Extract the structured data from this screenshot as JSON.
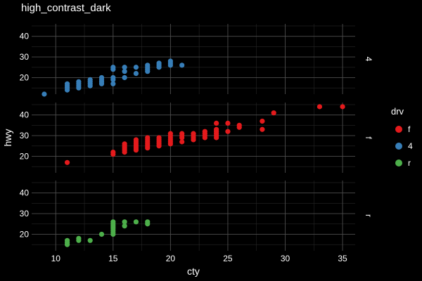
{
  "chart_data": {
    "type": "scatter",
    "title": "high_contrast_dark",
    "xlabel": "cty",
    "ylabel": "hwy",
    "facet_var": "drv",
    "facets": [
      "4",
      "f",
      "r"
    ],
    "xlim": [
      7.9,
      36.1
    ],
    "ylim": [
      12,
      46
    ],
    "x_ticks": [
      10,
      15,
      20,
      25,
      30,
      35
    ],
    "y_ticks": [
      20,
      30,
      40
    ],
    "grid": true,
    "legend": {
      "title": "drv",
      "position": "right",
      "entries": [
        {
          "label": "f",
          "color": "#e41a1c"
        },
        {
          "label": "4",
          "color": "#377eb8"
        },
        {
          "label": "r",
          "color": "#4daf4a"
        }
      ]
    },
    "series": [
      {
        "name": "4",
        "color": "#377eb8",
        "points": [
          [
            9,
            12
          ],
          [
            11,
            14
          ],
          [
            11,
            15
          ],
          [
            11,
            16
          ],
          [
            11,
            17
          ],
          [
            12,
            15
          ],
          [
            12,
            16
          ],
          [
            12,
            17
          ],
          [
            12,
            18
          ],
          [
            13,
            16
          ],
          [
            13,
            17
          ],
          [
            13,
            18
          ],
          [
            13,
            19
          ],
          [
            14,
            17
          ],
          [
            14,
            18
          ],
          [
            14,
            19
          ],
          [
            14,
            20
          ],
          [
            15,
            17
          ],
          [
            15,
            19
          ],
          [
            15,
            20
          ],
          [
            15,
            24
          ],
          [
            15,
            25
          ],
          [
            16,
            20
          ],
          [
            16,
            23
          ],
          [
            16,
            25
          ],
          [
            17,
            22
          ],
          [
            17,
            25
          ],
          [
            18,
            23
          ],
          [
            18,
            24
          ],
          [
            18,
            25
          ],
          [
            18,
            26
          ],
          [
            19,
            25
          ],
          [
            19,
            26
          ],
          [
            19,
            27
          ],
          [
            20,
            26
          ],
          [
            20,
            27
          ],
          [
            20,
            28
          ],
          [
            21,
            26
          ]
        ]
      },
      {
        "name": "f",
        "color": "#e41a1c",
        "points": [
          [
            11,
            17
          ],
          [
            15,
            21
          ],
          [
            15,
            22
          ],
          [
            16,
            22
          ],
          [
            16,
            23
          ],
          [
            16,
            24
          ],
          [
            16,
            25
          ],
          [
            16,
            26
          ],
          [
            17,
            23
          ],
          [
            17,
            24
          ],
          [
            17,
            25
          ],
          [
            17,
            26
          ],
          [
            17,
            27
          ],
          [
            17,
            28
          ],
          [
            18,
            24
          ],
          [
            18,
            25
          ],
          [
            18,
            26
          ],
          [
            18,
            27
          ],
          [
            18,
            28
          ],
          [
            18,
            29
          ],
          [
            19,
            25
          ],
          [
            19,
            26
          ],
          [
            19,
            27
          ],
          [
            19,
            28
          ],
          [
            19,
            29
          ],
          [
            20,
            26
          ],
          [
            20,
            27
          ],
          [
            20,
            28
          ],
          [
            20,
            29
          ],
          [
            20,
            30
          ],
          [
            20,
            31
          ],
          [
            21,
            27
          ],
          [
            21,
            29
          ],
          [
            21,
            30
          ],
          [
            21,
            31
          ],
          [
            22,
            28
          ],
          [
            22,
            29
          ],
          [
            22,
            30
          ],
          [
            22,
            31
          ],
          [
            23,
            29
          ],
          [
            23,
            30
          ],
          [
            23,
            31
          ],
          [
            23,
            32
          ],
          [
            24,
            29
          ],
          [
            24,
            30
          ],
          [
            24,
            31
          ],
          [
            24,
            32
          ],
          [
            24,
            33
          ],
          [
            24,
            36
          ],
          [
            25,
            32
          ],
          [
            25,
            36
          ],
          [
            26,
            34
          ],
          [
            26,
            35
          ],
          [
            28,
            33
          ],
          [
            28,
            37
          ],
          [
            29,
            41
          ],
          [
            33,
            44
          ],
          [
            35,
            44
          ]
        ]
      },
      {
        "name": "r",
        "color": "#4daf4a",
        "points": [
          [
            11,
            15
          ],
          [
            11,
            16
          ],
          [
            11,
            17
          ],
          [
            12,
            17
          ],
          [
            12,
            18
          ],
          [
            13,
            17
          ],
          [
            14,
            20
          ],
          [
            15,
            20
          ],
          [
            15,
            21
          ],
          [
            15,
            22
          ],
          [
            15,
            23
          ],
          [
            15,
            24
          ],
          [
            15,
            25
          ],
          [
            15,
            26
          ],
          [
            16,
            24
          ],
          [
            16,
            26
          ],
          [
            17,
            26
          ],
          [
            18,
            25
          ],
          [
            18,
            26
          ]
        ]
      }
    ]
  }
}
